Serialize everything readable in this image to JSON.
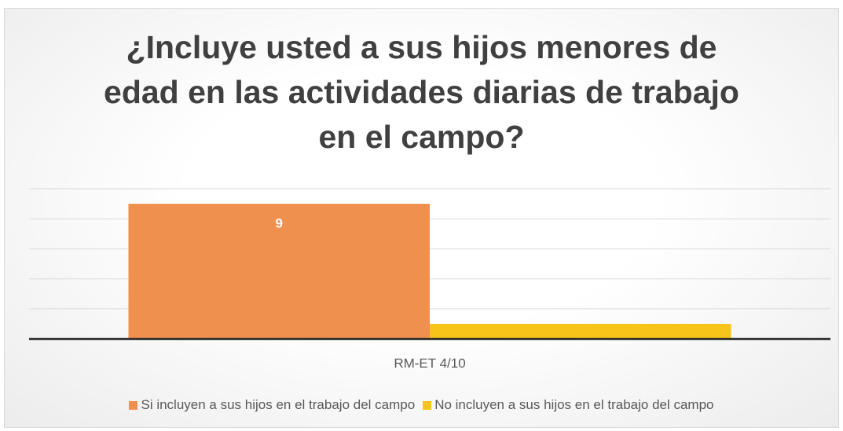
{
  "chart_data": {
    "type": "bar",
    "title": "¿Incluye usted a sus hijos menores de edad en las actividades diarias de trabajo en el campo?",
    "categories": [
      "RM-ET 4/10"
    ],
    "series": [
      {
        "name": "Si incluyen a sus hijos en el trabajo del campo",
        "color": "#f0904f",
        "values": [
          9
        ],
        "show_labels": true
      },
      {
        "name": "No incluyen a sus hijos en el trabajo del campo",
        "color": "#f7c41a",
        "values": [
          1
        ],
        "show_labels": false
      }
    ],
    "ylim": [
      0,
      10
    ],
    "yticks": [
      0,
      2,
      4,
      6,
      8,
      10
    ],
    "grid": true,
    "legend": "bottom"
  }
}
